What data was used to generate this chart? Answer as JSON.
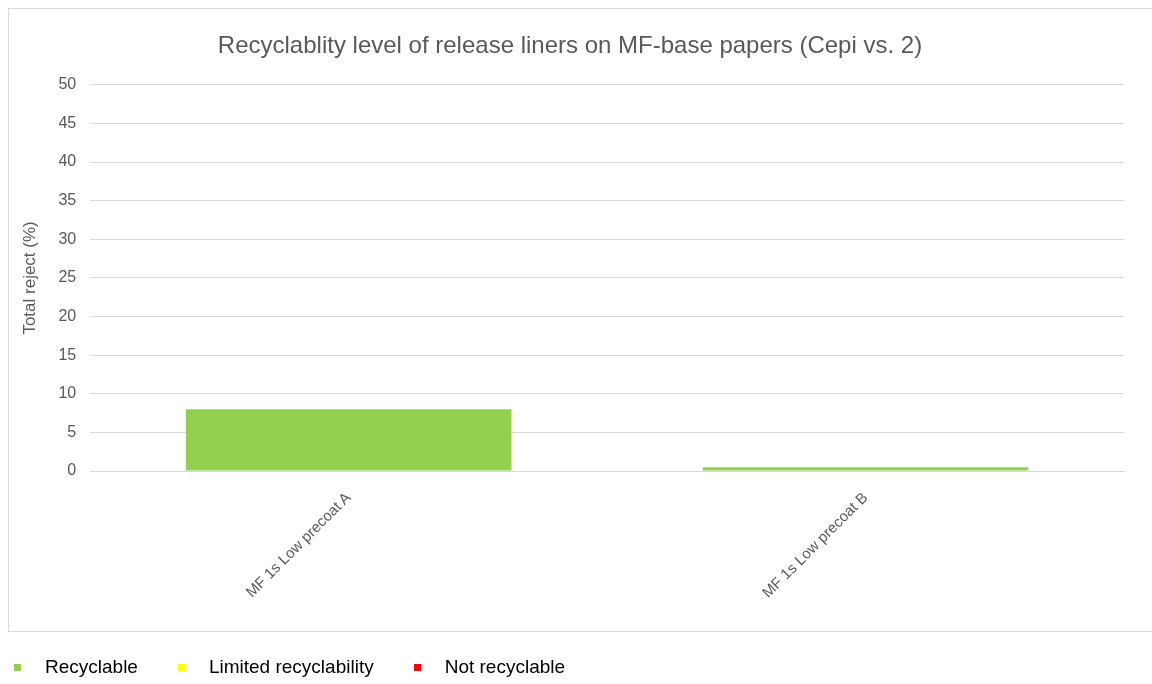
{
  "chart_data": {
    "type": "bar",
    "title": "Recyclablity level of release liners on MF-base papers (Cepi vs. 2)",
    "ylabel": "Total reject (%)",
    "categories": [
      "MF 1s Low precoat A",
      "MF 1s Low precoat B"
    ],
    "series": [
      {
        "name": "Recyclable",
        "color": "#92d050",
        "values": [
          8,
          0.5
        ]
      },
      {
        "name": "Limited recyclability",
        "color": "#ffff00",
        "values": [
          null,
          null
        ]
      },
      {
        "name": "Not recyclable",
        "color": "#ff0000",
        "values": [
          null,
          null
        ]
      }
    ],
    "ylim": [
      0,
      50
    ],
    "yticks": [
      0,
      5,
      10,
      15,
      20,
      25,
      30,
      35,
      40,
      45,
      50
    ],
    "grid": "y",
    "legend": "bottom left"
  }
}
